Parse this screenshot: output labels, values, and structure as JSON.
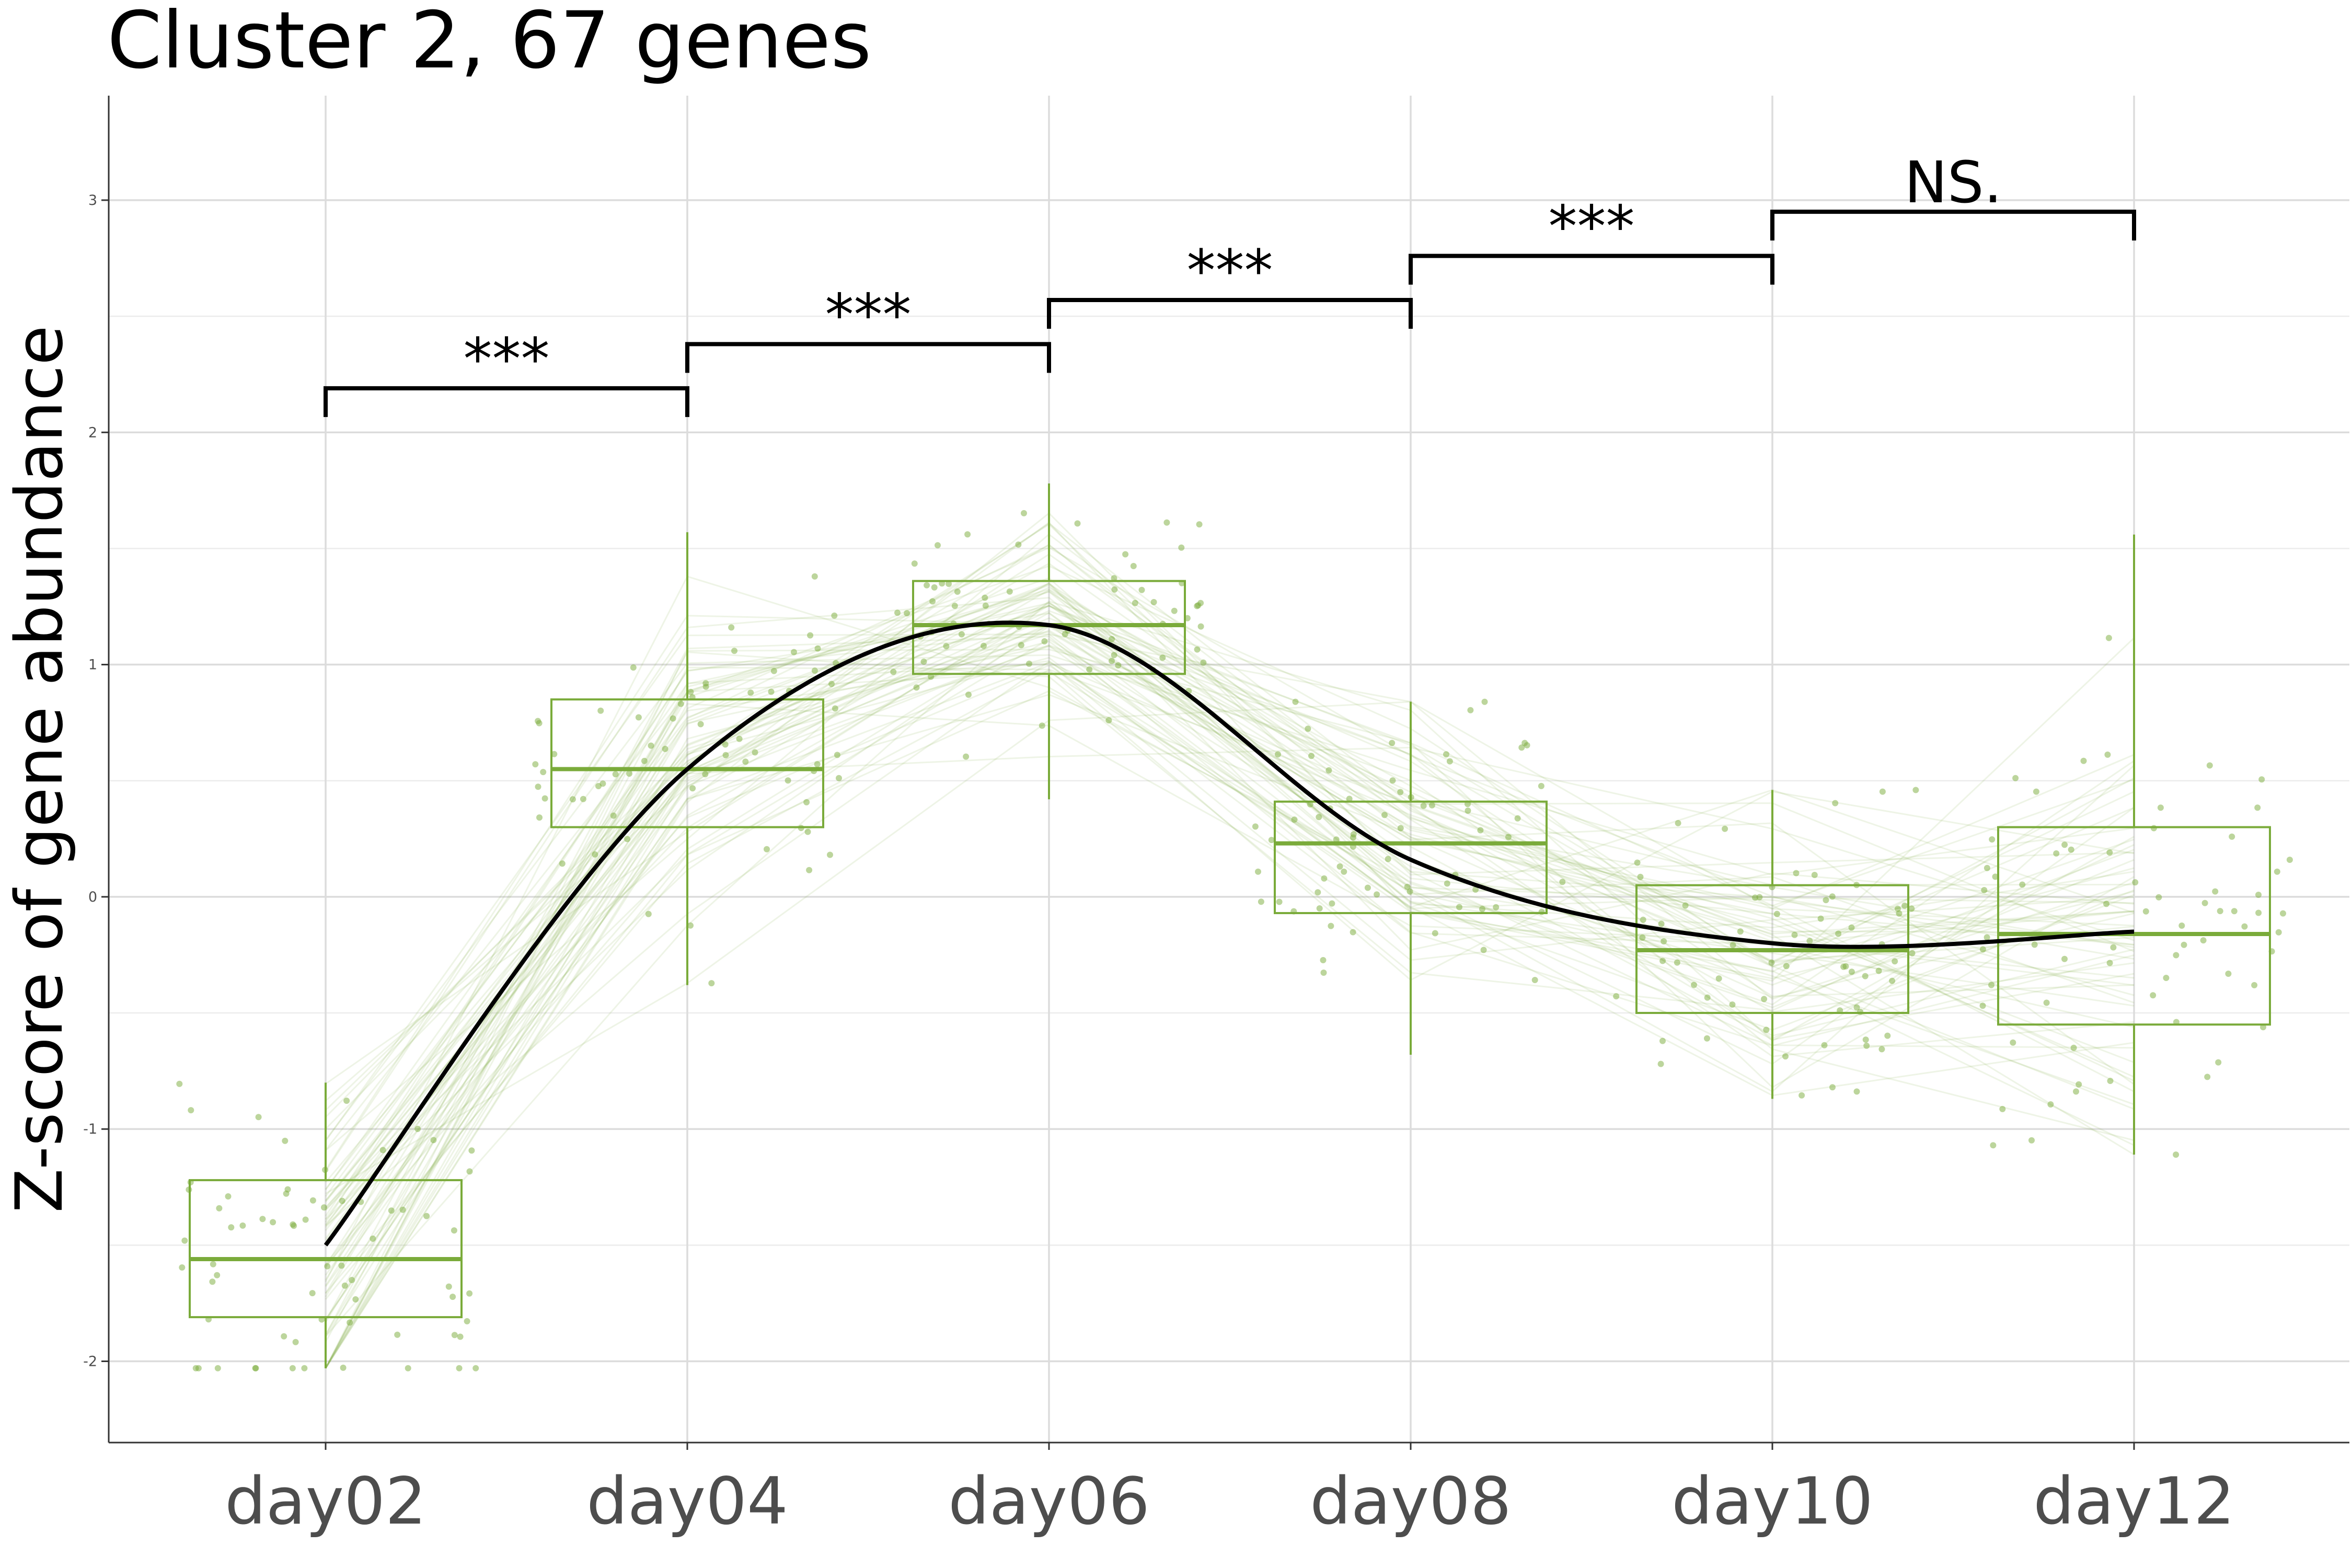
{
  "chart_data": {
    "type": "box",
    "title": "Cluster 2, 67 genes",
    "ylabel": "Z-score of gene abundance",
    "xlabel": "",
    "categories": [
      "day02",
      "day04",
      "day06",
      "day08",
      "day10",
      "day12"
    ],
    "ylim": [
      -2.35,
      3.45
    ],
    "yticks": [
      -2,
      -1,
      0,
      1,
      2,
      3
    ],
    "grid": true,
    "color": "#7aab3a",
    "boxes": [
      {
        "category": "day02",
        "lower_whisker": -2.03,
        "q1": -1.81,
        "median": -1.56,
        "q3": -1.22,
        "upper_whisker": -0.8
      },
      {
        "category": "day04",
        "lower_whisker": -0.38,
        "q1": 0.3,
        "median": 0.55,
        "q3": 0.85,
        "upper_whisker": 1.57
      },
      {
        "category": "day06",
        "lower_whisker": 0.42,
        "q1": 0.96,
        "median": 1.17,
        "q3": 1.36,
        "upper_whisker": 1.78
      },
      {
        "category": "day08",
        "lower_whisker": -0.68,
        "q1": -0.07,
        "median": 0.23,
        "q3": 0.41,
        "upper_whisker": 0.84
      },
      {
        "category": "day10",
        "lower_whisker": -0.87,
        "q1": -0.5,
        "median": -0.23,
        "q3": 0.05,
        "upper_whisker": 0.46
      },
      {
        "category": "day12",
        "lower_whisker": -1.11,
        "q1": -0.55,
        "median": -0.16,
        "q3": 0.3,
        "upper_whisker": 1.56
      }
    ],
    "trend_line": {
      "x": [
        "day02",
        "day04",
        "day06",
        "day08",
        "day10",
        "day12"
      ],
      "y": [
        -1.5,
        0.55,
        1.17,
        0.16,
        -0.2,
        -0.15
      ],
      "color": "#000000"
    },
    "significance": [
      {
        "from": "day02",
        "to": "day04",
        "y": 2.19,
        "label": "***"
      },
      {
        "from": "day04",
        "to": "day06",
        "y": 2.38,
        "label": "***"
      },
      {
        "from": "day06",
        "to": "day08",
        "y": 2.57,
        "label": "***"
      },
      {
        "from": "day08",
        "to": "day10",
        "y": 2.76,
        "label": "***"
      },
      {
        "from": "day10",
        "to": "day12",
        "y": 2.95,
        "label": "NS."
      }
    ]
  }
}
